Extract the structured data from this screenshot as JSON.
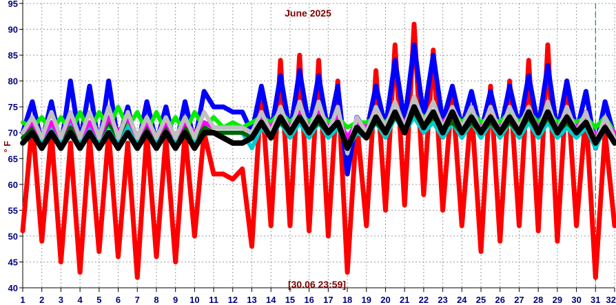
{
  "chart_data": {
    "type": "line",
    "title": "June 2025",
    "timestamp": "[30.06 23:59]",
    "ylabel": "° F",
    "ylim": [
      40,
      95
    ],
    "xlim": [
      1,
      32
    ],
    "grid": true,
    "y_ticks": [
      95,
      90,
      85,
      80,
      75,
      70,
      65,
      60,
      55,
      50,
      45,
      40
    ],
    "x_ticks": [
      "1",
      "2",
      "3",
      "4",
      "5",
      "6",
      "7",
      "8",
      "9",
      "10",
      "11",
      "12",
      "13",
      "14",
      "15",
      "16",
      "17",
      "18",
      "19",
      "20",
      "21",
      "22",
      "23",
      "24",
      "25",
      "26",
      "27",
      "28",
      "29",
      "30",
      "31",
      "32"
    ],
    "series": [
      {
        "color": "#ff0000",
        "width": 7,
        "x": [
          1,
          1.5,
          2,
          2.5,
          3,
          3.5,
          4,
          4.5,
          5,
          5.5,
          6,
          6.5,
          7,
          7.5,
          8,
          8.5,
          9,
          9.5,
          10,
          10.5,
          11,
          11.5,
          12,
          12.5,
          13,
          13.5,
          14,
          14.5,
          15,
          15.5,
          16,
          16.5,
          17,
          17.5,
          18,
          18.5,
          19,
          19.5,
          20,
          20.5,
          21,
          21.5,
          22,
          22.5,
          23,
          23.5,
          24,
          24.5,
          25,
          25.5,
          26,
          26.5,
          27,
          27.5,
          28,
          28.5,
          29,
          29.5,
          30,
          30.5,
          31,
          31.5,
          32
        ],
        "y": [
          51,
          72,
          49,
          70,
          45,
          68,
          43,
          69,
          47,
          70,
          46,
          68,
          42,
          70,
          46,
          69,
          45,
          70,
          50,
          70,
          62,
          62,
          61,
          63,
          48,
          78,
          52,
          84,
          52,
          85,
          51,
          84,
          50,
          80,
          43,
          72,
          52,
          82,
          55,
          87,
          56,
          91,
          58,
          86,
          55,
          78,
          52,
          75,
          47,
          79,
          49,
          80,
          52,
          84,
          51,
          87,
          49,
          80,
          52,
          74,
          42,
          70,
          52
        ]
      },
      {
        "color": "#0000ff",
        "width": 7,
        "x": [
          1,
          1.5,
          2,
          2.5,
          3,
          3.5,
          4,
          4.5,
          5,
          5.5,
          6,
          6.5,
          7,
          7.5,
          8,
          8.5,
          9,
          9.5,
          10,
          10.5,
          11,
          11.5,
          12,
          12.5,
          13,
          13.5,
          14,
          14.5,
          15,
          15.5,
          16,
          16.5,
          17,
          17.5,
          18,
          18.5,
          19,
          19.5,
          20,
          20.5,
          21,
          21.5,
          22,
          22.5,
          23,
          23.5,
          24,
          24.5,
          25,
          25.5,
          26,
          26.5,
          27,
          27.5,
          28,
          28.5,
          29,
          29.5,
          30,
          30.5,
          31,
          31.5,
          32
        ],
        "y": [
          70,
          76,
          68,
          76,
          67,
          80,
          68,
          79,
          67,
          80,
          68,
          75,
          67,
          76,
          68,
          75,
          67,
          76,
          68,
          78,
          75,
          75,
          74,
          74,
          70,
          79,
          70,
          81,
          70,
          82,
          71,
          81,
          70,
          79,
          62,
          73,
          70,
          79,
          71,
          84,
          72,
          87,
          73,
          85,
          72,
          79,
          71,
          78,
          70,
          78,
          70,
          79,
          71,
          81,
          71,
          83,
          70,
          80,
          70,
          78,
          67,
          76,
          69
        ]
      },
      {
        "color": "#00ee00",
        "width": 6,
        "x": [
          1,
          1.5,
          2,
          2.5,
          3,
          3.5,
          4,
          4.5,
          5,
          5.5,
          6,
          6.5,
          7,
          7.5,
          8,
          8.5,
          9,
          9.5,
          10,
          10.5,
          11,
          11.5,
          12,
          12.5,
          13,
          13.5,
          14,
          14.5,
          15,
          15.5,
          16,
          16.5,
          17,
          17.5,
          18,
          18.5,
          19,
          19.5,
          20,
          20.5,
          21,
          21.5,
          22,
          22.5,
          23,
          23.5,
          24,
          24.5,
          25,
          25.5,
          26,
          26.5,
          27,
          27.5,
          28,
          28.5,
          29,
          29.5,
          30,
          30.5,
          31,
          31.5,
          32
        ],
        "y": [
          72,
          71,
          73,
          70,
          73,
          70,
          74,
          70,
          74,
          71,
          75,
          71,
          74,
          70,
          74,
          70,
          73,
          70,
          74,
          71,
          73,
          71,
          72,
          71,
          72,
          73,
          72,
          74,
          72,
          74,
          72,
          74,
          72,
          73,
          71,
          72,
          72,
          73,
          72,
          74,
          72,
          75,
          73,
          74,
          72,
          74,
          72,
          74,
          72,
          73,
          72,
          74,
          72,
          74,
          72,
          74,
          72,
          73,
          72,
          73,
          71,
          73,
          70
        ]
      },
      {
        "color": "#00cccc",
        "width": 6,
        "x": [
          1,
          1.5,
          2,
          2.5,
          3,
          3.5,
          4,
          4.5,
          5,
          5.5,
          6,
          6.5,
          7,
          7.5,
          8,
          8.5,
          9,
          9.5,
          10,
          10.5,
          11,
          11.5,
          12,
          12.5,
          13,
          13.5,
          14,
          14.5,
          15,
          15.5,
          16,
          16.5,
          17,
          17.5,
          18,
          18.5,
          19,
          19.5,
          20,
          20.5,
          21,
          21.5,
          22,
          22.5,
          23,
          23.5,
          24,
          24.5,
          25,
          25.5,
          26,
          26.5,
          27,
          27.5,
          28,
          28.5,
          29,
          29.5,
          30,
          30.5,
          31,
          31.5,
          32
        ],
        "y": [
          69,
          71,
          68,
          71,
          68,
          72,
          68,
          71,
          68,
          72,
          68,
          71,
          68,
          71,
          68,
          71,
          68,
          71,
          68,
          71,
          70,
          70,
          70,
          70,
          67,
          71,
          69,
          72,
          69,
          72,
          69,
          72,
          69,
          71,
          67,
          70,
          69,
          72,
          69,
          73,
          70,
          73,
          70,
          72,
          69,
          72,
          69,
          72,
          69,
          72,
          69,
          72,
          69,
          72,
          69,
          72,
          69,
          71,
          69,
          71,
          67,
          71,
          68
        ]
      },
      {
        "color": "#006400",
        "width": 6,
        "x": [
          1,
          1.5,
          2,
          2.5,
          3,
          3.5,
          4,
          4.5,
          5,
          5.5,
          6,
          6.5,
          7,
          7.5,
          8,
          8.5,
          9,
          9.5,
          10,
          10.5,
          11,
          11.5,
          12,
          12.5,
          13,
          13.5,
          14,
          14.5,
          15,
          15.5,
          16,
          16.5,
          17,
          17.5,
          18,
          18.5,
          19,
          19.5,
          20,
          20.5,
          21,
          21.5,
          22,
          22.5,
          23,
          23.5,
          24,
          24.5,
          25,
          25.5,
          26,
          26.5,
          27,
          27.5,
          28,
          28.5,
          29,
          29.5,
          30,
          30.5,
          31,
          31.5,
          32
        ],
        "y": [
          69,
          71,
          69,
          72,
          69,
          71,
          69,
          72,
          69,
          72,
          69,
          73,
          69,
          71,
          69,
          71,
          69,
          71,
          69,
          71,
          70,
          70,
          70,
          70,
          69,
          72,
          70,
          72,
          70,
          73,
          70,
          72,
          70,
          72,
          68,
          71,
          70,
          72,
          70,
          73,
          71,
          74,
          71,
          73,
          71,
          72,
          70,
          72,
          70,
          72,
          70,
          72,
          70,
          73,
          70,
          73,
          70,
          72,
          70,
          72,
          68,
          71,
          69
        ]
      },
      {
        "color": "#ff00ff",
        "width": 6,
        "x": [
          1,
          1.5,
          2,
          2.5,
          3,
          3.5,
          4,
          4.5,
          5,
          5.5,
          6,
          6.5,
          7,
          7.5,
          8,
          8.5,
          9,
          9.5,
          10,
          10.5,
          11,
          11.5,
          12,
          12.5,
          13,
          13.5,
          14,
          14.5,
          15,
          15.5,
          16,
          16.5,
          17,
          17.5,
          18,
          18.5,
          19,
          19.5,
          20,
          20.5,
          21,
          21.5,
          22,
          22.5,
          23,
          23.5,
          24,
          24.5,
          25,
          25.5,
          26,
          26.5,
          27,
          27.5,
          28,
          28.5,
          29,
          29.5,
          30,
          30.5,
          31,
          31.5,
          32
        ],
        "y": [
          70,
          72,
          69,
          72,
          69,
          73,
          69,
          72,
          69,
          73,
          70,
          73,
          69,
          72,
          69,
          72,
          69,
          72,
          70,
          72,
          71,
          71,
          71,
          71,
          70,
          73,
          71,
          74,
          71,
          74,
          71,
          74,
          71,
          73,
          69,
          72,
          71,
          73,
          71,
          74,
          72,
          75,
          72,
          74,
          72,
          74,
          71,
          73,
          71,
          73,
          71,
          73,
          71,
          74,
          71,
          74,
          71,
          73,
          71,
          73,
          69,
          72,
          70
        ]
      },
      {
        "color": "#c0c0c0",
        "width": 6,
        "x": [
          1,
          1.5,
          2,
          2.5,
          3,
          3.5,
          4,
          4.5,
          5,
          5.5,
          6,
          6.5,
          7,
          7.5,
          8,
          8.5,
          9,
          9.5,
          10,
          10.5,
          11,
          11.5,
          12,
          12.5,
          13,
          13.5,
          14,
          14.5,
          15,
          15.5,
          16,
          16.5,
          17,
          17.5,
          18,
          18.5,
          19,
          19.5,
          20,
          20.5,
          21,
          21.5,
          22,
          22.5,
          23,
          23.5,
          24,
          24.5,
          25,
          25.5,
          26,
          26.5,
          27,
          27.5,
          28,
          28.5,
          29,
          29.5,
          30,
          30.5,
          31,
          31.5,
          32
        ],
        "y": [
          70,
          73,
          69,
          74,
          69,
          74,
          69,
          74,
          69,
          75,
          69,
          74,
          69,
          73,
          69,
          73,
          69,
          73,
          69,
          74,
          71,
          71,
          71,
          71,
          70,
          74,
          70,
          75,
          70,
          76,
          70,
          76,
          70,
          75,
          66,
          73,
          70,
          75,
          71,
          76,
          71,
          77,
          72,
          76,
          71,
          75,
          71,
          75,
          70,
          75,
          70,
          75,
          71,
          75,
          70,
          76,
          70,
          75,
          70,
          74,
          68,
          73,
          69
        ]
      },
      {
        "color": "#000000",
        "width": 8,
        "x": [
          1,
          1.5,
          2,
          2.5,
          3,
          3.5,
          4,
          4.5,
          5,
          5.5,
          6,
          6.5,
          7,
          7.5,
          8,
          8.5,
          9,
          9.5,
          10,
          10.5,
          11,
          11.5,
          12,
          12.5,
          13,
          13.5,
          14,
          14.5,
          15,
          15.5,
          16,
          16.5,
          17,
          17.5,
          18,
          18.5,
          19,
          19.5,
          20,
          20.5,
          21,
          21.5,
          22,
          22.5,
          23,
          23.5,
          24,
          24.5,
          25,
          25.5,
          26,
          26.5,
          27,
          27.5,
          28,
          28.5,
          29,
          29.5,
          30,
          30.5,
          31,
          31.5,
          32
        ],
        "y": [
          68,
          70,
          67,
          70,
          67,
          70,
          67,
          70,
          67,
          70,
          67,
          70,
          67,
          70,
          67,
          70,
          67,
          70,
          67,
          70,
          70,
          69,
          68,
          68,
          69,
          72,
          69,
          73,
          70,
          73,
          70,
          73,
          70,
          72,
          67,
          71,
          69,
          73,
          70,
          74,
          70,
          75,
          71,
          74,
          70,
          74,
          70,
          73,
          70,
          73,
          70,
          73,
          70,
          74,
          70,
          74,
          70,
          73,
          70,
          72,
          68,
          71,
          68
        ]
      }
    ]
  }
}
